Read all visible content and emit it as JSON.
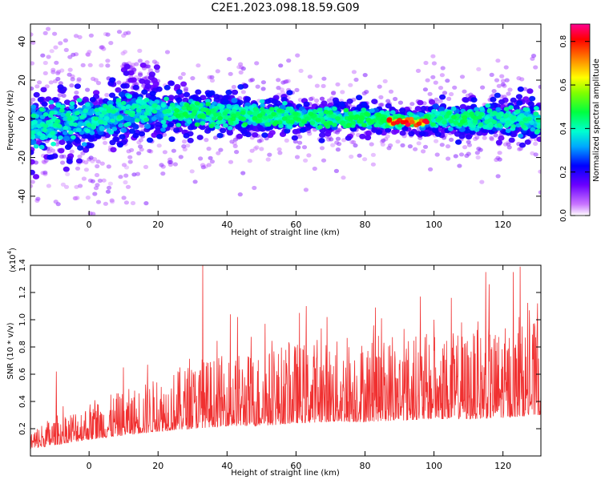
{
  "title": "C2E1.2023.098.18.59.G09",
  "chart_data": [
    {
      "type": "heatmap",
      "xlabel": "Height of straight line (km)",
      "ylabel": "Frequency (Hz)",
      "xlim": [
        -17,
        131
      ],
      "ylim": [
        -50,
        49
      ],
      "xticks": [
        0,
        20,
        40,
        60,
        80,
        100,
        120
      ],
      "yticks": [
        -40,
        -20,
        0,
        20,
        40
      ],
      "colorbar": {
        "label": "Normalized spectral amplitude",
        "range": [
          0.0,
          0.88
        ],
        "ticks": [
          "0.0",
          "0.2",
          "0.4",
          "0.6",
          "0.8"
        ]
      },
      "ridge": {
        "x": [
          -17,
          0,
          10,
          20,
          40,
          60,
          80,
          92,
          100,
          120,
          131
        ],
        "center_frequency": [
          -3,
          -1,
          4,
          4,
          2,
          1,
          0,
          -1,
          0,
          0,
          0
        ],
        "spread_hz": [
          12,
          10,
          9,
          7,
          6,
          5,
          5,
          3,
          5,
          6,
          7
        ]
      },
      "peak": {
        "x": 92,
        "frequency": -1,
        "amplitude": 0.85
      }
    },
    {
      "type": "line",
      "xlabel": "Height of straight line (km)",
      "ylabel": "SNR (10 * v/v)",
      "multiplier": "(x10",
      "multiplier_exp": "4",
      "multiplier_close": ")",
      "xlim": [
        -17,
        131
      ],
      "ylim": [
        0,
        1.4
      ],
      "xticks": [
        0,
        20,
        40,
        60,
        80,
        100,
        120
      ],
      "yticks": [
        "0.2",
        "0.4",
        "0.6",
        "0.8",
        "1.0",
        "1.2",
        "1.4"
      ],
      "color": "#f03030",
      "envelope": {
        "x": [
          -17,
          -10,
          0,
          10,
          20,
          30,
          40,
          50,
          60,
          70,
          80,
          90,
          100,
          110,
          120,
          131
        ],
        "base": [
          0.05,
          0.08,
          0.12,
          0.15,
          0.18,
          0.2,
          0.22,
          0.22,
          0.24,
          0.25,
          0.25,
          0.26,
          0.27,
          0.27,
          0.28,
          0.3
        ],
        "typical_peak": [
          0.2,
          0.3,
          0.4,
          0.48,
          0.58,
          0.7,
          0.75,
          0.78,
          0.85,
          0.85,
          0.88,
          0.9,
          0.9,
          0.92,
          0.95,
          1.0
        ]
      },
      "spikes": [
        {
          "x": -9.5,
          "y": 0.62
        },
        {
          "x": 10,
          "y": 0.65
        },
        {
          "x": 17,
          "y": 0.67
        },
        {
          "x": 33,
          "y": 1.4
        },
        {
          "x": 41,
          "y": 1.04
        },
        {
          "x": 43,
          "y": 1.02
        },
        {
          "x": 51,
          "y": 0.97
        },
        {
          "x": 61,
          "y": 1.05
        },
        {
          "x": 63,
          "y": 1.1
        },
        {
          "x": 69,
          "y": 1.02
        },
        {
          "x": 83,
          "y": 1.09
        },
        {
          "x": 96,
          "y": 1.17
        },
        {
          "x": 100,
          "y": 1.0
        },
        {
          "x": 105,
          "y": 1.16
        },
        {
          "x": 108,
          "y": 0.98
        },
        {
          "x": 115,
          "y": 1.35
        },
        {
          "x": 116,
          "y": 1.26
        },
        {
          "x": 123,
          "y": 1.35
        },
        {
          "x": 125,
          "y": 1.39
        },
        {
          "x": 130,
          "y": 1.12
        }
      ]
    }
  ]
}
